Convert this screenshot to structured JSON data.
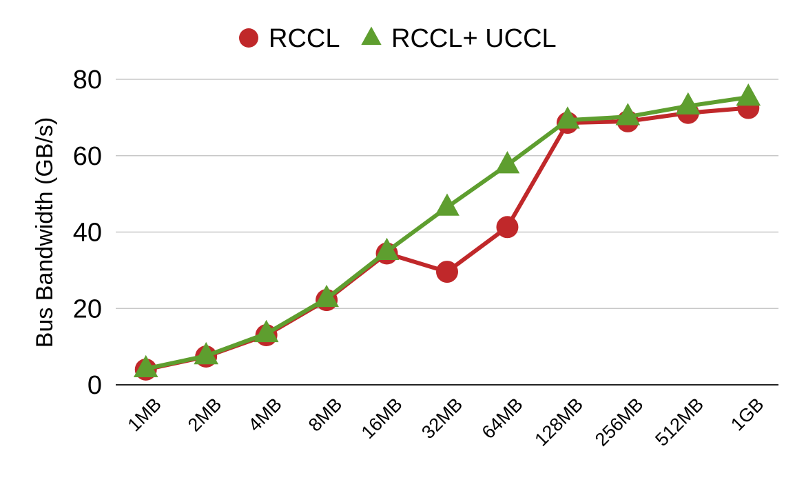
{
  "chart_data": {
    "type": "line",
    "title": "",
    "xlabel": "",
    "ylabel": "Bus Bandwidth (GB/s)",
    "categories": [
      "1MB",
      "2MB",
      "4MB",
      "8MB",
      "16MB",
      "32MB",
      "64MB",
      "128MB",
      "256MB",
      "512MB",
      "1GB"
    ],
    "ylim": [
      0,
      80
    ],
    "yticks": [
      0,
      20,
      40,
      60,
      80
    ],
    "grid": true,
    "legend_position": "top-center",
    "series": [
      {
        "name": "RCCL",
        "color": "#c0282a",
        "marker": "circle",
        "values": [
          4.0,
          7.4,
          13.0,
          22.2,
          34.4,
          29.6,
          41.3,
          68.6,
          69.0,
          71.2,
          72.5
        ]
      },
      {
        "name": "RCCL+ UCCL",
        "color": "#5e9e2f",
        "marker": "triangle",
        "values": [
          4.2,
          7.6,
          13.4,
          22.6,
          34.9,
          46.5,
          57.6,
          69.3,
          70.2,
          73.0,
          75.3
        ]
      }
    ]
  }
}
